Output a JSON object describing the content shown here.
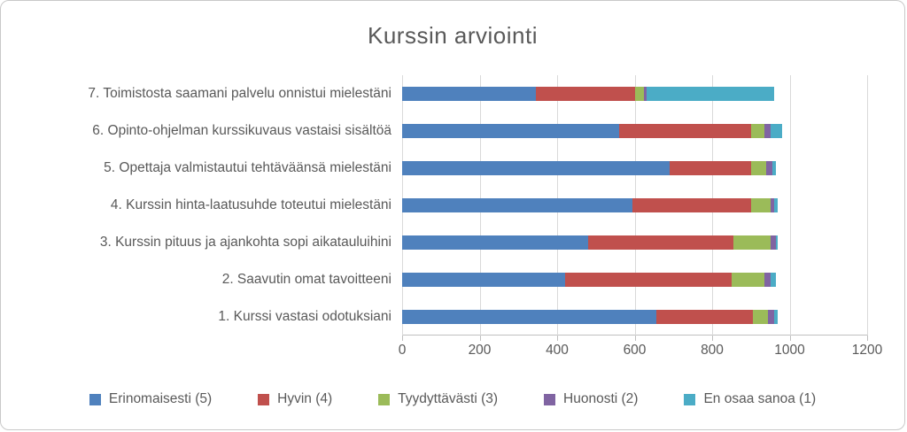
{
  "chart_data": {
    "type": "bar",
    "variant": "horizontal-stacked",
    "title": "Kurssin arviointi",
    "categories": [
      "7. Toimistosta saamani palvelu onnistui  mielestäni",
      "6. Opinto-ohjelman kurssikuvaus vastaisi sisältöä",
      "5. Opettaja valmistautui tehtäväänsä mielestäni",
      "4. Kurssin hinta-laatusuhde toteutui mielestäni",
      "3. Kurssin pituus ja ajankohta sopi aikatauluihini",
      "2. Saavutin omat tavoitteeni",
      "1. Kurssi vastasi odotuksiani"
    ],
    "series": [
      {
        "name": "Erinomaisesti (5)",
        "color": "#4f81bd",
        "values": [
          345,
          560,
          690,
          595,
          480,
          420,
          655
        ]
      },
      {
        "name": "Hyvin (4)",
        "color": "#c0504d",
        "values": [
          255,
          340,
          210,
          305,
          375,
          430,
          250
        ]
      },
      {
        "name": "Tyydyttävästi (3)",
        "color": "#9bbb59",
        "values": [
          25,
          35,
          40,
          50,
          95,
          85,
          40
        ]
      },
      {
        "name": "Huonosti (2)",
        "color": "#8064a2",
        "values": [
          5,
          15,
          15,
          10,
          15,
          15,
          15
        ]
      },
      {
        "name": "En osaa sanoa (1)",
        "color": "#4bacc6",
        "values": [
          330,
          30,
          10,
          10,
          5,
          15,
          10
        ]
      }
    ],
    "xlim": [
      0,
      1200
    ],
    "xticks": [
      0,
      200,
      400,
      600,
      800,
      1000,
      1200
    ],
    "grid": "vertical",
    "legend_position": "bottom",
    "colors": {
      "text": "#595959",
      "gridline": "#d9d9d9",
      "axis": "#bfbfbf",
      "border": "#c9c9c9"
    }
  }
}
